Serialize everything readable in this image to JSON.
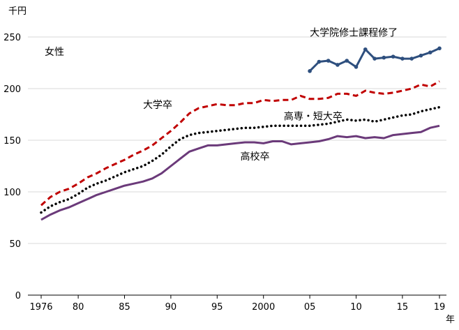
{
  "chart_data": {
    "type": "line",
    "title": "",
    "panel_label": "女性",
    "ylabel": "千円",
    "xlabel": "年",
    "ylim": [
      0,
      250
    ],
    "xlim": [
      1976,
      2019
    ],
    "yticks": [
      0,
      50,
      100,
      150,
      200,
      250
    ],
    "xticks": [
      {
        "year": 1976,
        "label": "1976"
      },
      {
        "year": 1980,
        "label": "80"
      },
      {
        "year": 1985,
        "label": "85"
      },
      {
        "year": 1990,
        "label": "90"
      },
      {
        "year": 1995,
        "label": "95"
      },
      {
        "year": 2000,
        "label": "2000"
      },
      {
        "year": 2005,
        "label": "05"
      },
      {
        "year": 2010,
        "label": "10"
      },
      {
        "year": 2015,
        "label": "15"
      },
      {
        "year": 2019,
        "label": "19"
      }
    ],
    "grid": "horizontal",
    "legend": "none",
    "series": [
      {
        "name": "大学院修士課程修了",
        "color": "#2e4f7e",
        "style": "solid-markers",
        "label_year": 2005,
        "label_value": 251,
        "x": [
          2005,
          2006,
          2007,
          2008,
          2009,
          2010,
          2011,
          2012,
          2013,
          2014,
          2015,
          2016,
          2017,
          2018,
          2019
        ],
        "values": [
          217,
          226,
          227,
          223,
          227,
          221,
          238,
          229,
          230,
          231,
          229,
          229,
          232,
          235,
          239
        ]
      },
      {
        "name": "大学卒",
        "color": "#c00000",
        "style": "dashed",
        "label_year": 1987,
        "label_value": 181,
        "x": [
          1976,
          1977,
          1978,
          1979,
          1980,
          1981,
          1982,
          1983,
          1984,
          1985,
          1986,
          1987,
          1988,
          1989,
          1990,
          1991,
          1992,
          1993,
          1994,
          1995,
          1996,
          1997,
          1998,
          1999,
          2000,
          2001,
          2002,
          2003,
          2004,
          2005,
          2006,
          2007,
          2008,
          2009,
          2010,
          2011,
          2012,
          2013,
          2014,
          2015,
          2016,
          2017,
          2018,
          2019
        ],
        "values": [
          87,
          95,
          100,
          103,
          108,
          114,
          118,
          123,
          127,
          131,
          136,
          140,
          145,
          152,
          159,
          167,
          176,
          181,
          183,
          185,
          184,
          184,
          186,
          186,
          189,
          188,
          189,
          189,
          193,
          190,
          190,
          191,
          195,
          195,
          193,
          198,
          196,
          195,
          196,
          198,
          200,
          204,
          202,
          207
        ]
      },
      {
        "name": "高専・短大卒",
        "color": "#000000",
        "style": "dotted",
        "label_year": 2002.2,
        "label_value": 170,
        "x": [
          1976,
          1977,
          1978,
          1979,
          1980,
          1981,
          1982,
          1983,
          1984,
          1985,
          1986,
          1987,
          1988,
          1989,
          1990,
          1991,
          1992,
          1993,
          1994,
          1995,
          1996,
          1997,
          1998,
          1999,
          2000,
          2001,
          2002,
          2003,
          2004,
          2005,
          2006,
          2007,
          2008,
          2009,
          2010,
          2011,
          2012,
          2013,
          2014,
          2015,
          2016,
          2017,
          2018,
          2019
        ],
        "values": [
          80,
          86,
          90,
          93,
          98,
          104,
          108,
          111,
          115,
          119,
          122,
          125,
          130,
          136,
          144,
          151,
          155,
          157,
          158,
          159,
          160,
          161,
          162,
          162,
          163,
          164,
          164,
          164,
          164,
          164,
          165,
          166,
          168,
          170,
          169,
          170,
          168,
          170,
          172,
          174,
          175,
          178,
          180,
          182
        ]
      },
      {
        "name": "高校卒",
        "color": "#6b3a7a",
        "style": "solid",
        "label_year": 1997.5,
        "label_value": 131,
        "x": [
          1976,
          1977,
          1978,
          1979,
          1980,
          1981,
          1982,
          1983,
          1984,
          1985,
          1986,
          1987,
          1988,
          1989,
          1990,
          1991,
          1992,
          1993,
          1994,
          1995,
          1996,
          1997,
          1998,
          1999,
          2000,
          2001,
          2002,
          2003,
          2004,
          2005,
          2006,
          2007,
          2008,
          2009,
          2010,
          2011,
          2012,
          2013,
          2014,
          2015,
          2016,
          2017,
          2018,
          2019
        ],
        "values": [
          73,
          78,
          82,
          85,
          89,
          93,
          97,
          100,
          103,
          106,
          108,
          110,
          113,
          118,
          125,
          132,
          139,
          142,
          145,
          145,
          146,
          147,
          148,
          148,
          147,
          149,
          149,
          146,
          147,
          148,
          149,
          151,
          154,
          153,
          154,
          152,
          153,
          152,
          155,
          156,
          157,
          158,
          162,
          164
        ]
      }
    ]
  }
}
